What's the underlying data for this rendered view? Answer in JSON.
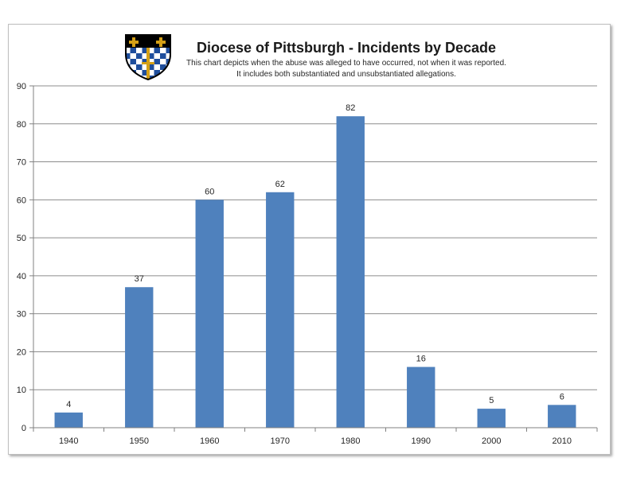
{
  "chart_data": {
    "type": "bar",
    "title": "Diocese of Pittsburgh - Incidents by Decade",
    "subtitle": [
      "This chart depicts when the abuse was alleged to have occurred, not when it was reported.",
      "It includes both substantiated and unsubstantiated allegations."
    ],
    "categories": [
      "1940",
      "1950",
      "1960",
      "1970",
      "1980",
      "1990",
      "2000",
      "2010"
    ],
    "values": [
      4,
      37,
      60,
      62,
      82,
      16,
      5,
      6
    ],
    "ylim": [
      0,
      90
    ],
    "yticks": [
      0,
      10,
      20,
      30,
      40,
      50,
      60,
      70,
      80,
      90
    ],
    "grid": true,
    "data_labels": true,
    "bar_color": "#4f81bd"
  },
  "logo": {
    "name": "diocese-shield-logo",
    "colors": [
      "#000000",
      "#d4a017",
      "#ffffff",
      "#1f4e9c"
    ]
  }
}
